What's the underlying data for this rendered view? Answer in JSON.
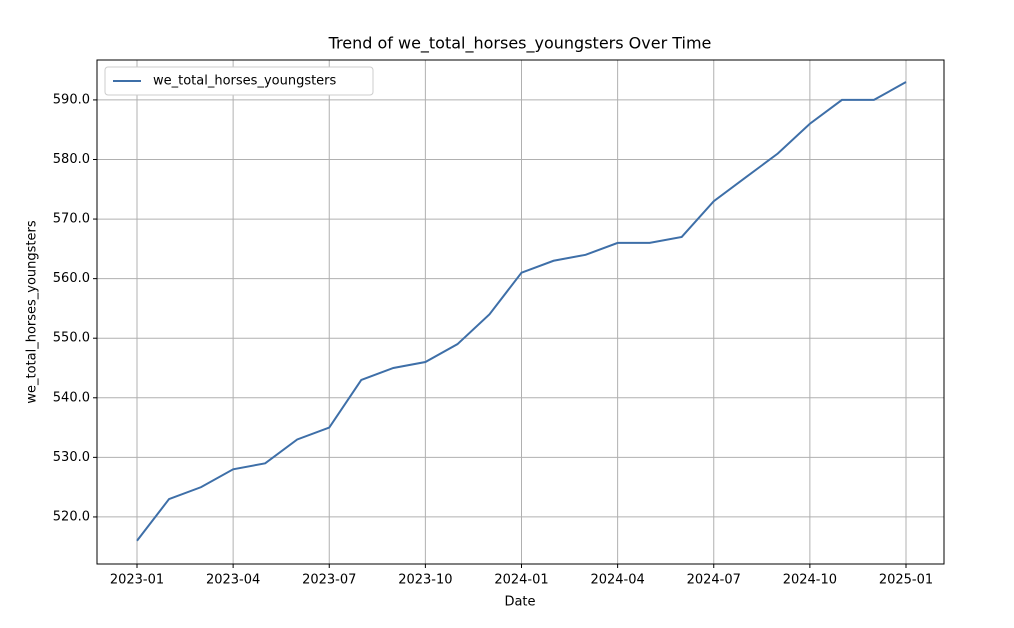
{
  "chart_data": {
    "type": "line",
    "title": "Trend of we_total_horses_youngsters Over Time",
    "x_label": "Date",
    "y_label": "we_total_horses_youngsters",
    "x": [
      "2023-01",
      "2023-02",
      "2023-03",
      "2023-04",
      "2023-05",
      "2023-06",
      "2023-07",
      "2023-08",
      "2023-09",
      "2023-10",
      "2023-11",
      "2023-12",
      "2024-01",
      "2024-02",
      "2024-03",
      "2024-04",
      "2024-05",
      "2024-06",
      "2024-07",
      "2024-08",
      "2024-09",
      "2024-10",
      "2024-11",
      "2024-12",
      "2025-01"
    ],
    "series": [
      {
        "name": "we_total_horses_youngsters",
        "color": "#3e6fa8",
        "values": [
          516,
          523,
          525,
          528,
          529,
          533,
          535,
          543,
          545,
          546,
          549,
          554,
          561,
          563,
          564,
          566,
          566,
          567,
          573,
          577,
          581,
          586,
          590,
          590,
          593
        ]
      }
    ],
    "xticks": [
      "2023-01",
      "2023-04",
      "2023-07",
      "2023-10",
      "2024-01",
      "2024-04",
      "2024-07",
      "2024-10",
      "2025-01"
    ],
    "ylim": [
      512.1,
      596.7
    ],
    "yticks": [
      {
        "value": 520,
        "label": "520.0"
      },
      {
        "value": 530,
        "label": "530.0"
      },
      {
        "value": 540,
        "label": "540.0"
      },
      {
        "value": 550,
        "label": "550.0"
      },
      {
        "value": 560,
        "label": "560.0"
      },
      {
        "value": 570,
        "label": "570.0"
      },
      {
        "value": 580,
        "label": "580.0"
      },
      {
        "value": 590,
        "label": "590.0"
      }
    ],
    "grid": true,
    "legend": "upper-left"
  }
}
